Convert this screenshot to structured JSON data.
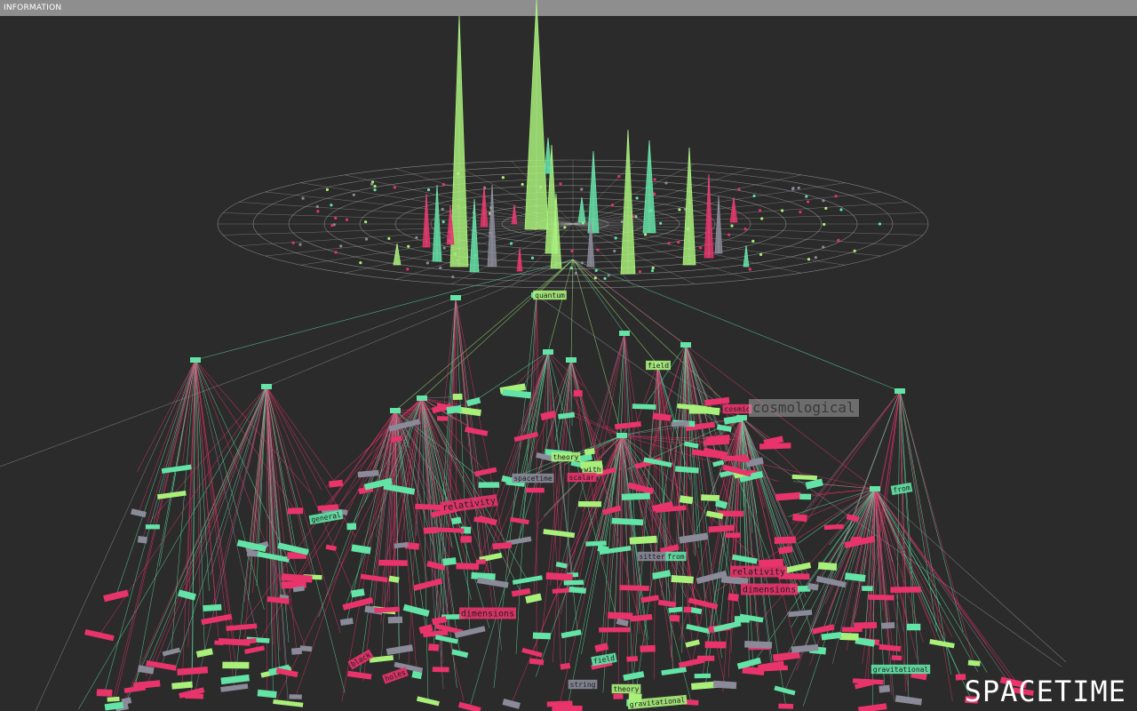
{
  "window": {
    "title": "INFORMATION"
  },
  "brand": "SPACETIME",
  "hover_label": "cosmological",
  "colors": {
    "background": "#2b2b2b",
    "top_bar": "#8e8e8e",
    "lime": "#a8f07a",
    "teal": "#63e3a6",
    "pink": "#e8336b",
    "gray": "#8a8a99",
    "grid": "#c8c8c8"
  },
  "word_labels": [
    {
      "text": "quantum",
      "color": "lime"
    },
    {
      "text": "field",
      "color": "lime"
    },
    {
      "text": "theory",
      "color": "lime"
    },
    {
      "text": "with",
      "color": "lime"
    },
    {
      "text": "scalar",
      "color": "pink"
    },
    {
      "text": "relativity",
      "color": "pink"
    },
    {
      "text": "dimensions",
      "color": "pink"
    },
    {
      "text": "sitter",
      "color": "gray"
    },
    {
      "text": "from",
      "color": "teal"
    },
    {
      "text": "relativity",
      "color": "pink"
    },
    {
      "text": "dimensions",
      "color": "pink"
    },
    {
      "text": "gravitational",
      "color": "lime"
    },
    {
      "text": "field",
      "color": "teal"
    },
    {
      "text": "string",
      "color": "gray"
    },
    {
      "text": "theory",
      "color": "lime"
    },
    {
      "text": "gravitational",
      "color": "teal"
    },
    {
      "text": "from",
      "color": "teal"
    },
    {
      "text": "spacetime",
      "color": "gray"
    },
    {
      "text": "black",
      "color": "pink"
    },
    {
      "text": "holes",
      "color": "pink"
    },
    {
      "text": "general",
      "color": "teal"
    },
    {
      "text": "cosmic",
      "color": "pink"
    }
  ]
}
